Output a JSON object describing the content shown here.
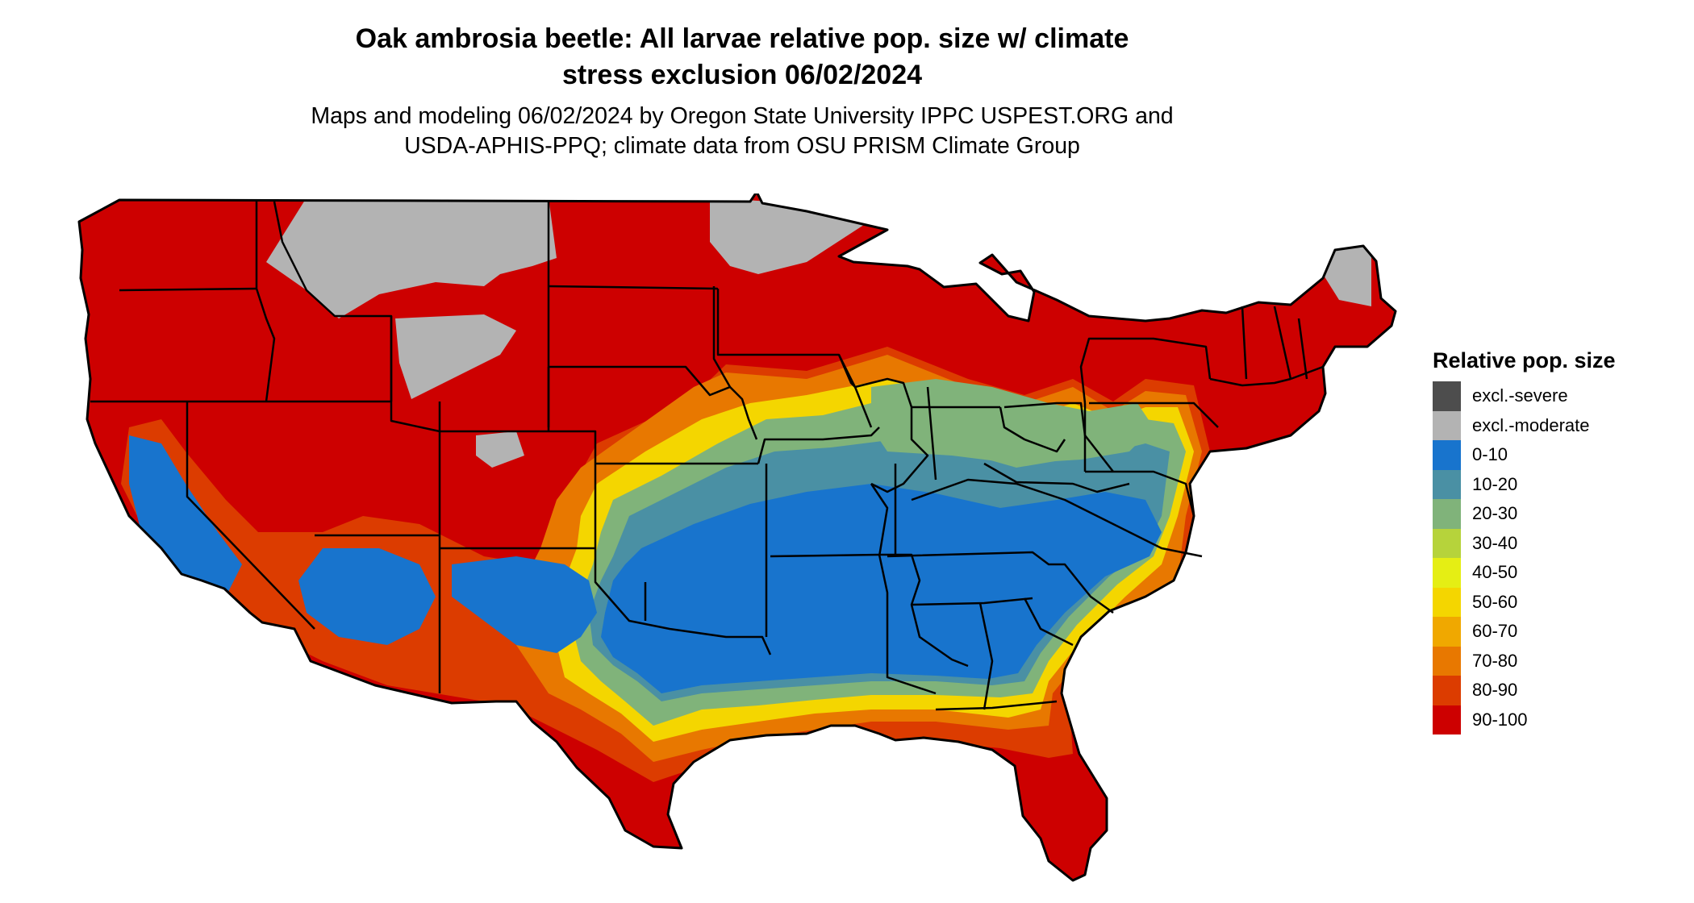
{
  "title": {
    "line1": "Oak ambrosia beetle: All larvae relative pop. size w/ climate",
    "line2": "stress exclusion 06/02/2024"
  },
  "subtitle": {
    "line1": "Maps and modeling 06/02/2024 by Oregon State University IPPC USPEST.ORG and",
    "line2": "USDA-APHIS-PPQ; climate data from OSU PRISM Climate Group"
  },
  "legend": {
    "title": "Relative pop. size",
    "items": [
      {
        "label": "excl.-severe",
        "color": "#4d4d4d"
      },
      {
        "label": "excl.-moderate",
        "color": "#b3b3b3"
      },
      {
        "label": "0-10",
        "color": "#1874cd"
      },
      {
        "label": "10-20",
        "color": "#4a90a4"
      },
      {
        "label": "20-30",
        "color": "#80b37a"
      },
      {
        "label": "30-40",
        "color": "#b6d33b"
      },
      {
        "label": "40-50",
        "color": "#e5ee14"
      },
      {
        "label": "50-60",
        "color": "#f4d600"
      },
      {
        "label": "60-70",
        "color": "#f0a800"
      },
      {
        "label": "70-80",
        "color": "#e87800"
      },
      {
        "label": "80-90",
        "color": "#dc3c00"
      },
      {
        "label": "90-100",
        "color": "#cd0000"
      }
    ]
  }
}
